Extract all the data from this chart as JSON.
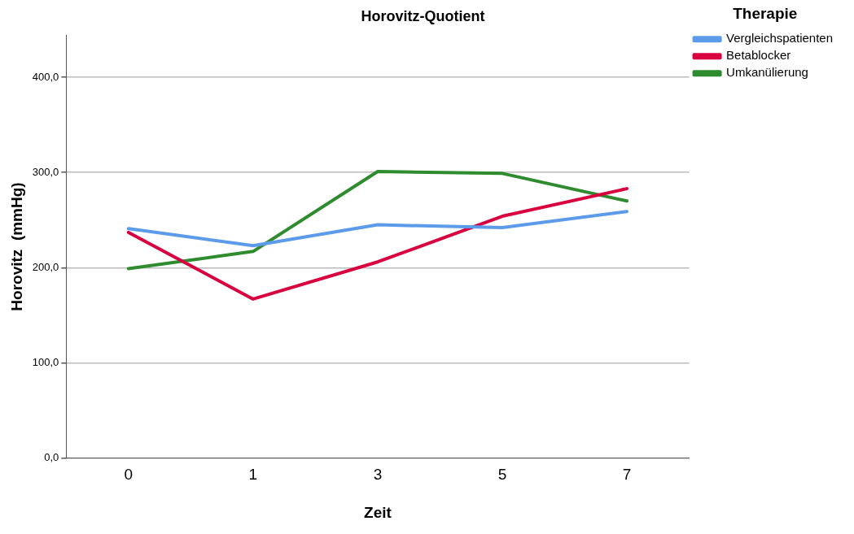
{
  "chart_data": {
    "type": "line",
    "title": "Horovitz-Quotient",
    "xlabel": "Zeit",
    "ylabel": "Horovitz  (mmHg)",
    "legend_title": "Therapie",
    "categories": [
      "0",
      "1",
      "3",
      "5",
      "7"
    ],
    "series": [
      {
        "name": "Vergleichspatienten",
        "color": "#5b9bea",
        "values": [
          241,
          223,
          245,
          242,
          259
        ]
      },
      {
        "name": "Betablocker",
        "color": "#d9003f",
        "values": [
          237,
          167,
          206,
          254,
          283
        ]
      },
      {
        "name": "Umkanülierung",
        "color": "#2e8b2e",
        "values": [
          199,
          217,
          301,
          299,
          270
        ]
      }
    ],
    "ylim": [
      0,
      444
    ],
    "yticks": [
      {
        "value": 0,
        "label": "0,0"
      },
      {
        "value": 100,
        "label": "100,0"
      },
      {
        "value": 200,
        "label": "200,0"
      },
      {
        "value": 300,
        "label": "300,0"
      },
      {
        "value": 400,
        "label": "400,0"
      }
    ],
    "grid": "y",
    "legend": "top right",
    "marker": "none",
    "line_style": "solid"
  }
}
